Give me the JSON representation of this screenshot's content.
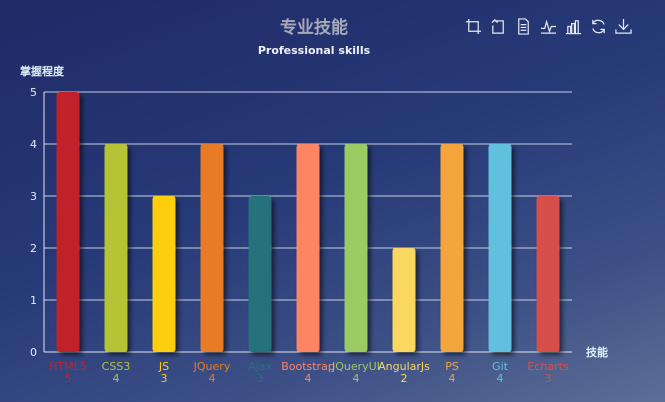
{
  "chart_data": {
    "type": "bar",
    "title": "专业技能",
    "subtitle": "Professional skills",
    "ylabel": "掌握程度",
    "xlabel": "技能",
    "ylim": [
      0,
      5
    ],
    "yticks": [
      0,
      1,
      2,
      3,
      4,
      5
    ],
    "grid": true,
    "categories": [
      "HTML5",
      "CSS3",
      "JS",
      "JQuery",
      "Ajax",
      "Bootstrap",
      "JQueryUI",
      "AngularJs",
      "PS",
      "Git",
      "Echarts"
    ],
    "values": [
      5,
      4,
      3,
      4,
      3,
      4,
      4,
      2,
      4,
      4,
      3
    ],
    "colors": [
      "#c1232b",
      "#b5c334",
      "#fcce10",
      "#e87c25",
      "#27727b",
      "#fe8463",
      "#9bca63",
      "#fad860",
      "#f3a43b",
      "#60c0dd",
      "#d7504b"
    ]
  },
  "toolbox": [
    {
      "icon": "zoom-region-icon"
    },
    {
      "icon": "zoom-reset-icon"
    },
    {
      "icon": "data-view-icon"
    },
    {
      "icon": "line-chart-icon"
    },
    {
      "icon": "bar-chart-icon"
    },
    {
      "icon": "restore-icon"
    },
    {
      "icon": "save-image-icon"
    }
  ]
}
